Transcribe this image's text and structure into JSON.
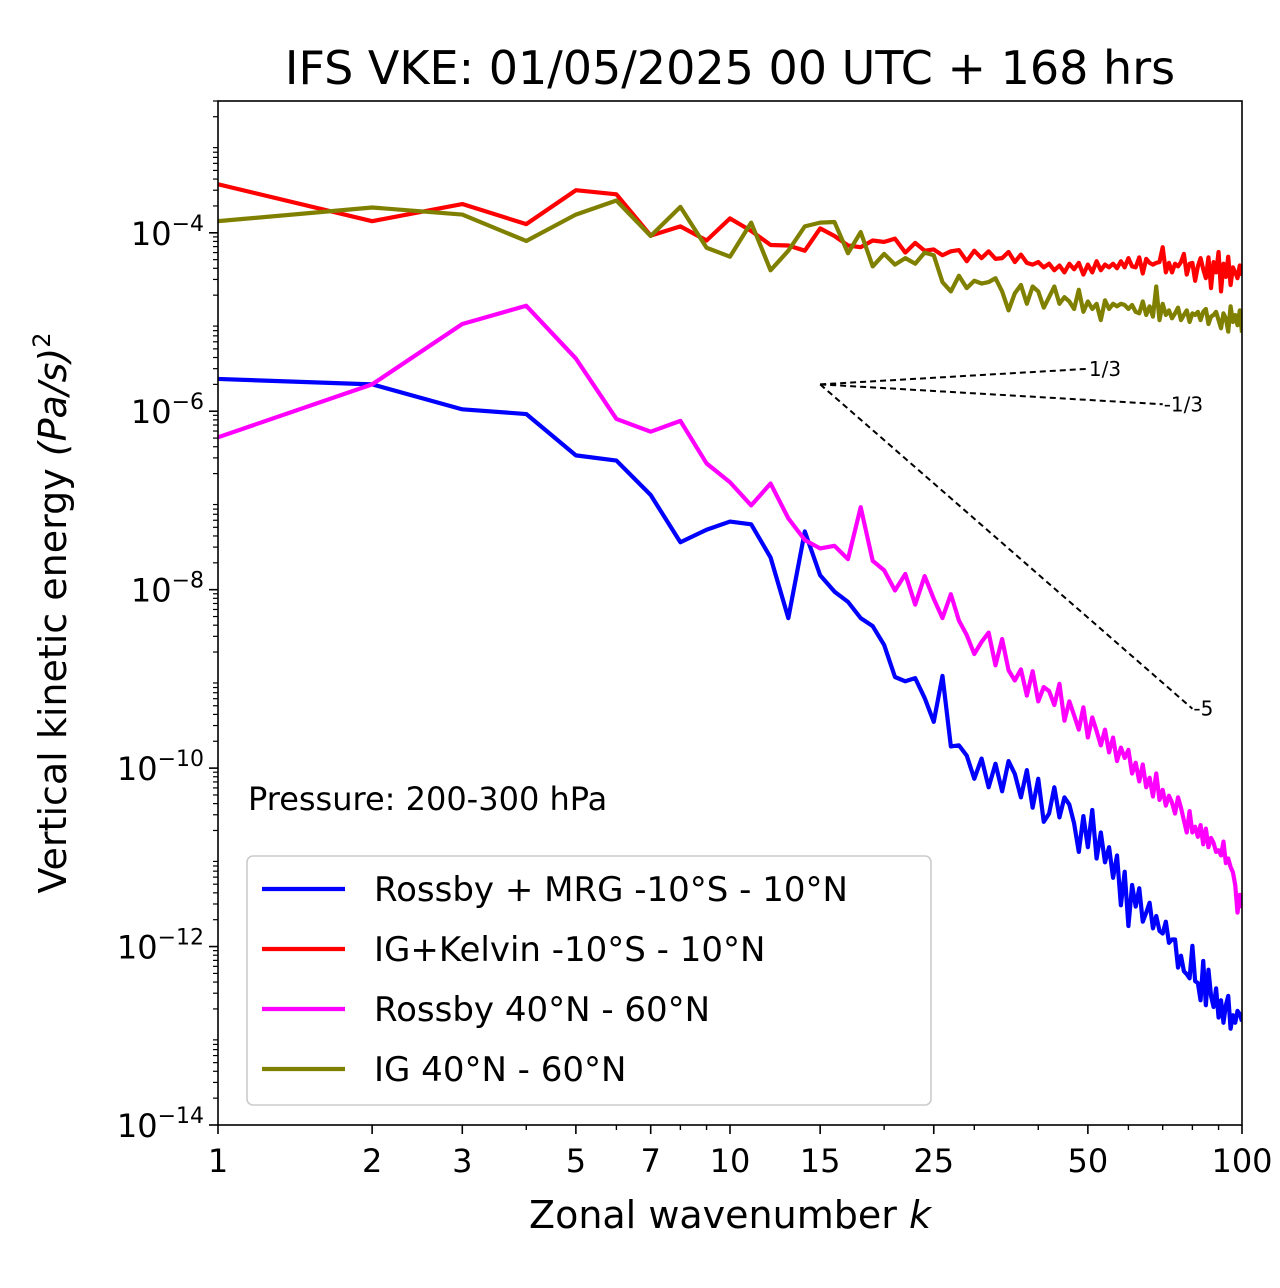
{
  "chart_data": {
    "type": "line",
    "title": "IFS VKE: 01/05/2025 00 UTC + 168 hrs",
    "xlabel_text": "Zonal wavenumber ",
    "xlabel_var": "k",
    "ylabel_text": "Vertical kinetic energy ",
    "ylabel_unit": "(Pa/s)",
    "ylabel_exp": "2",
    "xscale": "log",
    "yscale": "log",
    "xlim": [
      1,
      100
    ],
    "ylim": [
      1e-14,
      0.003
    ],
    "x_ticks": [
      1,
      2,
      3,
      5,
      7,
      10,
      15,
      25,
      50,
      100
    ],
    "x_tick_labels": [
      "1",
      "2",
      "3",
      "5",
      "7",
      "10",
      "15",
      "25",
      "50",
      "100"
    ],
    "y_ticks": [
      -14,
      -12,
      -10,
      -8,
      -6,
      -4
    ],
    "y_tick_base": "10",
    "y_tick_exponents": [
      "−14",
      "−12",
      "−10",
      "−8",
      "−6",
      "−4"
    ],
    "annotation": "Pressure: 200-300 hPa",
    "legend_position": "lower-left",
    "series": [
      {
        "name": "Rossby + MRG -10°S - 10°N",
        "color": "#0000ff",
        "x": [
          1,
          2,
          3,
          4,
          5,
          6,
          7,
          8,
          9,
          10,
          11,
          12,
          13,
          14,
          15,
          16,
          17,
          18,
          19,
          20,
          21,
          22,
          23,
          24,
          25,
          26,
          27,
          28,
          29,
          30,
          31,
          32,
          33,
          34,
          35,
          36,
          37,
          38,
          39,
          40,
          41,
          42,
          43,
          44,
          45,
          46,
          47,
          48,
          49,
          50,
          51,
          52,
          53,
          54,
          55,
          56,
          57,
          58,
          59,
          60,
          61,
          62,
          63,
          64,
          65,
          66,
          67,
          68,
          69,
          70,
          71,
          72,
          73,
          74,
          75,
          76,
          77,
          78,
          79,
          80,
          81,
          82,
          83,
          84,
          85,
          86,
          87,
          88,
          89,
          90,
          91,
          92,
          93,
          94,
          95,
          96,
          97,
          98,
          99,
          100
        ],
        "y": [
          2.3e-06,
          2e-06,
          1.05e-06,
          9.3e-07,
          3.2e-07,
          2.8e-07,
          1.15e-07,
          3.4e-08,
          4.7e-08,
          5.8e-08,
          5.4e-08,
          2.3e-08,
          4.8e-09,
          4.5e-08,
          1.45e-08,
          9.5e-09,
          7.3e-09,
          4.8e-09,
          3.9e-09,
          2.4e-09,
          1.05e-09,
          9.4e-10,
          1.02e-09,
          6.1e-10,
          3.3e-10,
          1.08e-09,
          1.75e-10,
          1.8e-10,
          1.38e-10,
          7.6e-11,
          1.28e-10,
          6.1e-11,
          1.12e-10,
          5.5e-11,
          1.2e-10,
          8.6e-11,
          4.7e-11,
          9.5e-11,
          3.6e-11,
          7.6e-11,
          2.5e-11,
          3.1e-11,
          6.1e-11,
          2.8e-11,
          4.7e-11,
          3.9e-11,
          2.4e-11,
          1.15e-11,
          2.9e-11,
          1.3e-11,
          3.4e-11,
          9.7e-12,
          1.9e-11,
          8.8e-12,
          1.3e-11,
          5.9e-12,
          1.05e-11,
          2.9e-12,
          6.9e-12,
          1.7e-12,
          4.9e-12,
          2.8e-12,
          4.5e-12,
          1.9e-12,
          2.4e-12,
          3.1e-12,
          1.6e-12,
          2.2e-12,
          1.5e-12,
          1.4e-12,
          1.9e-12,
          1.1e-12,
          1.2e-12,
          1.2e-12,
          5.8e-13,
          7.9e-13,
          5.3e-13,
          4.9e-13,
          4.4e-13,
          1.02e-12,
          4.1e-13,
          3.9e-13,
          2.5e-13,
          6.9e-13,
          2.2e-13,
          5.5e-13,
          2.8e-13,
          2.1e-13,
          3.4e-13,
          1.6e-13,
          2.5e-13,
          1.4e-13,
          2.2e-13,
          2.8e-13,
          1.2e-13,
          1.7e-13,
          1.4e-13,
          1.9e-13,
          1.75e-13,
          1.45e-13
        ]
      },
      {
        "name": "IG+Kelvin -10°S - 10°N",
        "color": "#ff0000",
        "x": [
          1,
          2,
          3,
          4,
          5,
          6,
          7,
          8,
          9,
          10,
          11,
          12,
          13,
          14,
          15,
          16,
          17,
          18,
          19,
          20,
          21,
          22,
          23,
          24,
          25,
          26,
          27,
          28,
          29,
          30,
          31,
          32,
          33,
          34,
          35,
          36,
          37,
          38,
          39,
          40,
          41,
          42,
          43,
          44,
          45,
          46,
          47,
          48,
          49,
          50,
          51,
          52,
          53,
          54,
          55,
          56,
          57,
          58,
          59,
          60,
          61,
          62,
          63,
          64,
          65,
          66,
          67,
          68,
          69,
          70,
          71,
          72,
          73,
          74,
          75,
          76,
          77,
          78,
          79,
          80,
          81,
          82,
          83,
          84,
          85,
          86,
          87,
          88,
          89,
          90,
          91,
          92,
          93,
          94,
          95,
          96,
          97,
          98,
          99,
          100
        ],
        "y": [
          0.00035,
          0.000135,
          0.00021,
          0.000125,
          0.0003,
          0.00027,
          9.3e-05,
          0.000118,
          8.2e-05,
          0.000145,
          0.000105,
          7.3e-05,
          7.2e-05,
          6.3e-05,
          0.000112,
          9.2e-05,
          7.2e-05,
          6.9e-05,
          8.2e-05,
          7.9e-05,
          8.6e-05,
          6e-05,
          7.7e-05,
          6.3e-05,
          6.5e-05,
          5.6e-05,
          6.2e-05,
          6.4e-05,
          4.8e-05,
          6.3e-05,
          5.2e-05,
          6.2e-05,
          5.1e-05,
          5.2e-05,
          6.1e-05,
          4.7e-05,
          5.7e-05,
          4.6e-05,
          4.4e-05,
          4.7e-05,
          4.1e-05,
          4.5e-05,
          3.8e-05,
          4.3e-05,
          3.6e-05,
          4.5e-05,
          3.9e-05,
          4.6e-05,
          3.4e-05,
          4.4e-05,
          3.6e-05,
          4.8e-05,
          3.8e-05,
          4.4e-05,
          4.1e-05,
          4.5e-05,
          4e-05,
          4.8e-05,
          4.1e-05,
          5.2e-05,
          4.2e-05,
          4.1e-05,
          5.3e-05,
          3.5e-05,
          5.1e-05,
          4.6e-05,
          4.4e-05,
          4.6e-05,
          4.7e-05,
          6.9e-05,
          3.6e-05,
          4.6e-05,
          3.6e-05,
          4.5e-05,
          4.2e-05,
          4.7e-05,
          5.8e-05,
          3.4e-05,
          4.5e-05,
          4.6e-05,
          2.9e-05,
          4.2e-05,
          5.2e-05,
          3.9e-05,
          3.1e-05,
          5.3e-05,
          2.4e-05,
          4.7e-05,
          3.6e-05,
          6.1e-05,
          2.2e-05,
          4.5e-05,
          3.2e-05,
          5.4e-05,
          2.6e-05,
          4.1e-05,
          3.6e-05,
          3.1e-05,
          4.3e-05,
          3.3e-05
        ]
      },
      {
        "name": "Rossby 40°N - 60°N",
        "color": "#ff00ff",
        "x": [
          1,
          2,
          3,
          4,
          5,
          6,
          7,
          8,
          9,
          10,
          11,
          12,
          13,
          14,
          15,
          16,
          17,
          18,
          19,
          20,
          21,
          22,
          23,
          24,
          25,
          26,
          27,
          28,
          29,
          30,
          31,
          32,
          33,
          34,
          35,
          36,
          37,
          38,
          39,
          40,
          41,
          42,
          43,
          44,
          45,
          46,
          47,
          48,
          49,
          50,
          51,
          52,
          53,
          54,
          55,
          56,
          57,
          58,
          59,
          60,
          61,
          62,
          63,
          64,
          65,
          66,
          67,
          68,
          69,
          70,
          71,
          72,
          73,
          74,
          75,
          76,
          77,
          78,
          79,
          80,
          81,
          82,
          83,
          84,
          85,
          86,
          87,
          88,
          89,
          90,
          91,
          92,
          93,
          94,
          95,
          96,
          97,
          98,
          99,
          100
        ],
        "y": [
          5.1e-07,
          2e-06,
          9.5e-06,
          1.52e-05,
          3.9e-06,
          8.2e-07,
          5.9e-07,
          7.8e-07,
          2.6e-07,
          1.6e-07,
          8.8e-08,
          1.55e-07,
          6.3e-08,
          3.6e-08,
          2.9e-08,
          3.1e-08,
          2.2e-08,
          8.4e-08,
          2.1e-08,
          1.65e-08,
          9.8e-09,
          1.5e-08,
          6.8e-09,
          1.42e-08,
          7.9e-09,
          4.8e-09,
          8.9e-09,
          4.5e-09,
          3.1e-09,
          1.9e-09,
          2.6e-09,
          3.3e-09,
          1.42e-09,
          2.8e-09,
          1.25e-09,
          9.6e-10,
          1.28e-09,
          6.5e-10,
          1.22e-09,
          5.6e-10,
          8.1e-10,
          7.3e-10,
          5.1e-10,
          8.8e-10,
          3.4e-10,
          5.6e-10,
          3.9e-10,
          2.7e-10,
          4.8e-10,
          2.2e-10,
          3.7e-10,
          2.6e-10,
          1.8e-10,
          2.7e-10,
          1.5e-10,
          2.2e-10,
          1.2e-10,
          1.7e-10,
          1.3e-10,
          1.6e-10,
          8.7e-11,
          1.15e-10,
          7.1e-11,
          1.1e-10,
          6.1e-11,
          7.8e-11,
          4.8e-11,
          8.7e-11,
          4.4e-11,
          5.7e-11,
          3.8e-11,
          4.9e-11,
          4.1e-11,
          3.1e-11,
          4.7e-11,
          3.6e-11,
          2.6e-11,
          1.9e-11,
          3.3e-11,
          1.9e-11,
          2.2e-11,
          1.7e-11,
          2.3e-11,
          1.4e-11,
          2.1e-11,
          1.3e-11,
          1.65e-11,
          1.45e-11,
          1.15e-11,
          1.2e-11,
          1.05e-11,
          1.5e-11,
          8.6e-12,
          9.7e-12,
          7.8e-12,
          6.8e-12,
          4.9e-12,
          2.4e-12,
          3.8e-12,
          2.7e-12
        ]
      },
      {
        "name": "IG 40°N - 60°N",
        "color": "#808000",
        "x": [
          1,
          2,
          3,
          4,
          5,
          6,
          7,
          8,
          9,
          10,
          11,
          12,
          13,
          14,
          15,
          16,
          17,
          18,
          19,
          20,
          21,
          22,
          23,
          24,
          25,
          26,
          27,
          28,
          29,
          30,
          31,
          32,
          33,
          34,
          35,
          36,
          37,
          38,
          39,
          40,
          41,
          42,
          43,
          44,
          45,
          46,
          47,
          48,
          49,
          50,
          51,
          52,
          53,
          54,
          55,
          56,
          57,
          58,
          59,
          60,
          61,
          62,
          63,
          64,
          65,
          66,
          67,
          68,
          69,
          70,
          71,
          72,
          73,
          74,
          75,
          76,
          77,
          78,
          79,
          80,
          81,
          82,
          83,
          84,
          85,
          86,
          87,
          88,
          89,
          90,
          91,
          92,
          93,
          94,
          95,
          96,
          97,
          98,
          99,
          100
        ],
        "y": [
          0.000135,
          0.000192,
          0.00016,
          8.1e-05,
          0.00016,
          0.00023,
          9.2e-05,
          0.000195,
          6.8e-05,
          5.4e-05,
          0.00013,
          3.8e-05,
          6.3e-05,
          0.000118,
          0.00013,
          0.000132,
          5.9e-05,
          0.000102,
          4.2e-05,
          5.8e-05,
          4.4e-05,
          5.2e-05,
          4.5e-05,
          6e-05,
          5.6e-05,
          2.8e-05,
          2.2e-05,
          3.3e-05,
          2.4e-05,
          2.9e-05,
          2.7e-05,
          2.8e-05,
          3.1e-05,
          2.2e-05,
          1.35e-05,
          2.1e-05,
          2.6e-05,
          1.6e-05,
          2.5e-05,
          2.2e-05,
          1.45e-05,
          1.9e-05,
          2.5e-05,
          1.6e-05,
          1.9e-05,
          1.7e-05,
          1.4e-05,
          2.3e-05,
          1.3e-05,
          1.7e-05,
          1.4e-05,
          1.6e-05,
          1.05e-05,
          1.75e-05,
          1.4e-05,
          1.6e-05,
          1.5e-05,
          1.6e-05,
          1.55e-05,
          1.4e-05,
          1.55e-05,
          1.3e-05,
          1.25e-05,
          1.7e-05,
          1.2e-05,
          1.5e-05,
          1.15e-05,
          2.5e-05,
          1.05e-05,
          1.6e-05,
          1.2e-05,
          1.35e-05,
          1.1e-05,
          1.25e-05,
          1.45e-05,
          1.05e-05,
          1.2e-05,
          1.35e-05,
          1e-05,
          1.25e-05,
          1.2e-05,
          1.3e-05,
          1.05e-05,
          1.3e-05,
          1.4e-05,
          9.5e-06,
          1.15e-05,
          1.2e-05,
          1.3e-05,
          1.05e-05,
          8.5e-06,
          1.25e-05,
          1.1e-05,
          7.8e-06,
          1.5e-05,
          1e-05,
          1.2e-05,
          9.2e-06,
          1.35e-05,
          7.6e-06
        ]
      }
    ],
    "reference_slopes": [
      {
        "label": "1/3",
        "slope": 0.3333,
        "x0": 15,
        "y0": 2e-06,
        "x1": 50
      },
      {
        "label": "-1/3",
        "slope": -0.3333,
        "x0": 15,
        "y0": 2e-06,
        "x1": 70
      },
      {
        "label": "-5",
        "slope": -5,
        "x0": 15,
        "y0": 2e-06,
        "x1": 80
      }
    ]
  }
}
